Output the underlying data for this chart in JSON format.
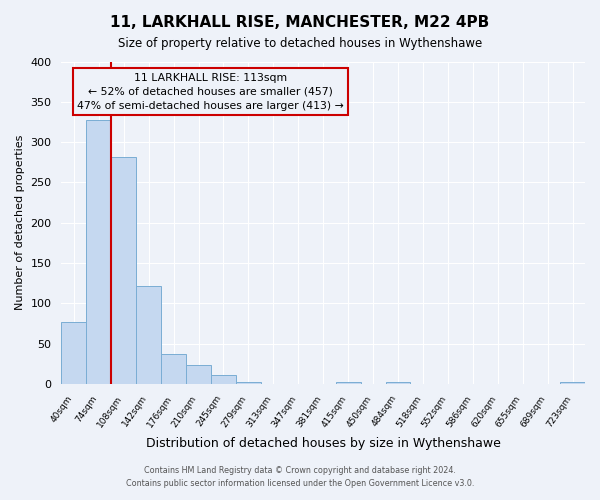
{
  "title": "11, LARKHALL RISE, MANCHESTER, M22 4PB",
  "subtitle": "Size of property relative to detached houses in Wythenshawe",
  "xlabel": "Distribution of detached houses by size in Wythenshawe",
  "ylabel": "Number of detached properties",
  "bin_labels": [
    "40sqm",
    "74sqm",
    "108sqm",
    "142sqm",
    "176sqm",
    "210sqm",
    "245sqm",
    "279sqm",
    "313sqm",
    "347sqm",
    "381sqm",
    "415sqm",
    "450sqm",
    "484sqm",
    "518sqm",
    "552sqm",
    "586sqm",
    "620sqm",
    "655sqm",
    "689sqm",
    "723sqm"
  ],
  "bar_heights": [
    77,
    327,
    281,
    122,
    37,
    24,
    11,
    3,
    0,
    0,
    0,
    2,
    0,
    2,
    0,
    0,
    0,
    0,
    0,
    0,
    2
  ],
  "bar_color": "#c5d8f0",
  "bar_edge_color": "#7aadd4",
  "ylim": [
    0,
    400
  ],
  "yticks": [
    0,
    50,
    100,
    150,
    200,
    250,
    300,
    350,
    400
  ],
  "property_line_color": "#cc0000",
  "annotation_title": "11 LARKHALL RISE: 113sqm",
  "annotation_line1": "← 52% of detached houses are smaller (457)",
  "annotation_line2": "47% of semi-detached houses are larger (413) →",
  "annotation_box_color": "#cc0000",
  "footer_line1": "Contains HM Land Registry data © Crown copyright and database right 2024.",
  "footer_line2": "Contains public sector information licensed under the Open Government Licence v3.0.",
  "background_color": "#eef2f9",
  "grid_color": "#ffffff"
}
